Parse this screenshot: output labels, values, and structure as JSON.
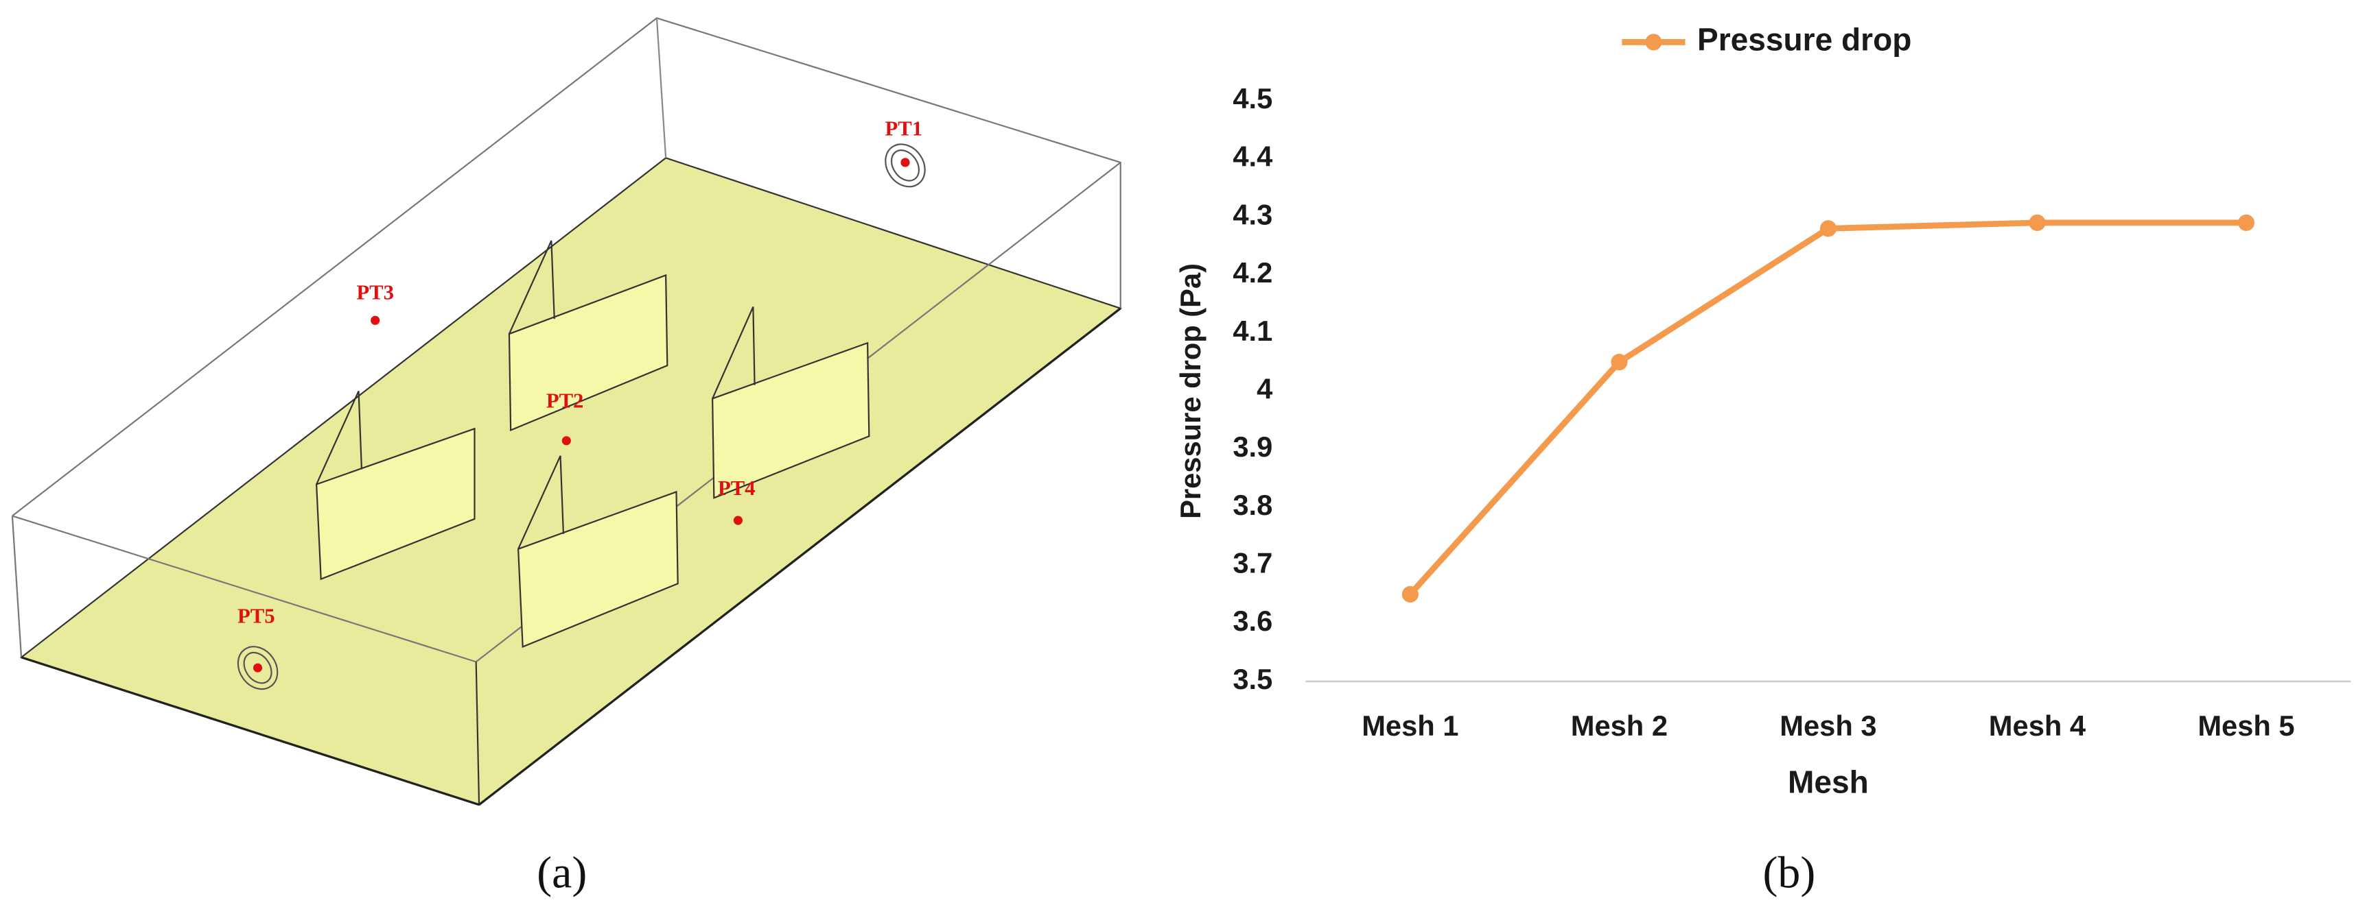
{
  "diagram": {
    "points": [
      "PT1",
      "PT2",
      "PT3",
      "PT4",
      "PT5"
    ],
    "caption": "(a)"
  },
  "chart_data": {
    "type": "line",
    "caption": "(b)",
    "x_label": "Mesh",
    "y_label": "Pressure drop (Pa)",
    "categories": [
      "Mesh 1",
      "Mesh 2",
      "Mesh 3",
      "Mesh 4",
      "Mesh 5"
    ],
    "series": [
      {
        "name": "Pressure drop",
        "color": "#f39a4d",
        "values": [
          3.65,
          4.05,
          4.28,
          4.29,
          4.29
        ]
      }
    ],
    "ylim": [
      3.5,
      4.5
    ],
    "yticks": [
      3.5,
      3.6,
      3.7,
      3.8,
      3.9,
      4,
      4.1,
      4.2,
      4.3,
      4.4,
      4.5
    ],
    "grid": false,
    "legend": "top"
  }
}
